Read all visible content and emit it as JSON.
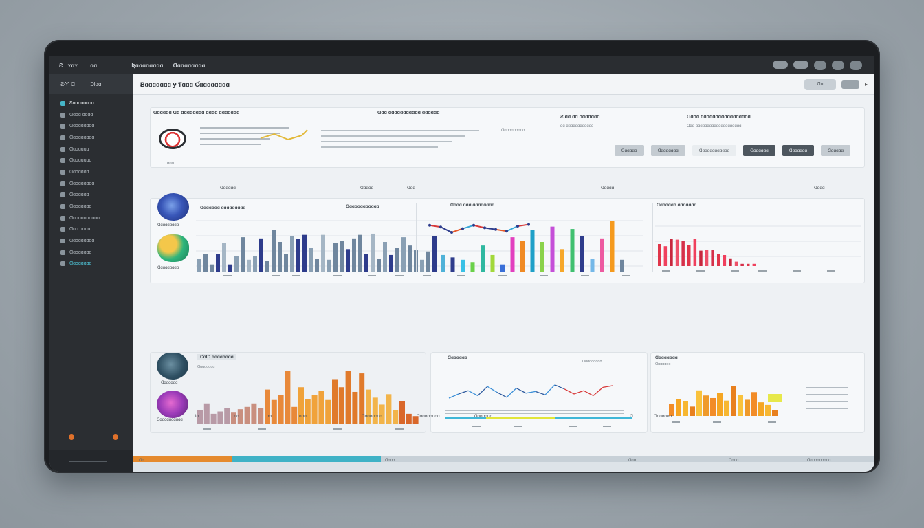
{
  "topbar": {
    "brand": "Ƨ ¯ʏɑʏ",
    "tab_a": "ɑɑ",
    "tab_b": "Ʀɑɑɑɑɑɑɑɑ",
    "tab_c": "Ɑɑɑɑɑɑɑɑɑ"
  },
  "sidebar": {
    "head_left": "Ƨ∕Ƴ Ɑ",
    "head_right": "ƆƖɑɑ",
    "items": [
      {
        "label": "Ƨɑɑɑɑɑɑɑɑ",
        "active": true
      },
      {
        "label": "Ɑɑɑɑ ɑɑɑɑ"
      },
      {
        "label": "Ɑɑɑɑɑɑɑɑɑ"
      },
      {
        "label": "Ɑɑɑɑɑɑɑɑɑ"
      },
      {
        "label": "Ɑɑɑɑɑɑɑ"
      },
      {
        "label": "Ɑɑɑɑɑɑɑɑ"
      },
      {
        "label": "Ɑɑɑɑɑɑɑ"
      },
      {
        "label": "Ɑɑɑɑɑɑɑɑɑ"
      },
      {
        "label": "Ɑɑɑɑɑɑɑ"
      },
      {
        "label": "Ɑɑɑɑɑɑɑɑ"
      },
      {
        "label": "Ɑɑɑɑɑɑɑɑɑɑɑ"
      },
      {
        "label": "Ɑɑɑ ɑɑɑɑ"
      },
      {
        "label": "Ɑɑɑɑɑɑɑɑɑ"
      },
      {
        "label": "Ɑɑɑɑɑɑɑɑ"
      },
      {
        "label": "Ɑɑɑɑɑɑɑɑ",
        "teal": true
      }
    ]
  },
  "main": {
    "title": "Ƀɑɑɑɑɑɑɑ ɏ Ƭɑɑɑ Ƈɑɑɑɑɑɑɑɑ",
    "search_label": "Ɑɑ"
  },
  "row1": {
    "head_1": "Ɑɑɑɑɑɑ Ɑɑ ɑɑɑɑɑɑɑɑ ɑɑɑɑ ɑɑɑɑɑɑɑ",
    "head_2": "Ɑɑɑ ɑɑɑɑɑɑɑɑɑɑɑ ɑɑɑɑɑɑ",
    "head_3": "Ƨ ɑɑ ɑɑ ɑɑɑɑɑɑɑ",
    "head_4": "Ɑɑɑɑ ɑɑɑɑɑɑɑɑɑɑɑɑɑɑɑɑɑ",
    "sub_gauge": "ɑɑɑ",
    "sub_mid": "Ɑɑɑɑɑɑɑɑɑɑ",
    "sub_right": "ɑɑ ɑɑɑɑɑɑɑɑɑɑɑɑ",
    "sub_far": "Ɑɑɑ ɑɑɑɑɑɑɑɑɑɑɑɑɑɑɑɑɑɑɑɑ",
    "buttons": [
      "Ɑɑɑɑɑɑ",
      "Ɑɑɑɑɑɑɑɑ",
      "Ɑɑɑɑɑɑɑɑɑɑɑɑ",
      "Ɑɑɑɑɑɑɑ",
      "Ɑɑɑɑɑɑɑ",
      "Ɑɑɑɑɑɑ"
    ]
  },
  "row2": {
    "labels": [
      "Ɑɑɑɑɑɑ",
      "Ɑɑɑɑɑ",
      "Ɑɑɑ",
      "Ɑɑɑɑɑ",
      "Ɑɑɑɑ"
    ],
    "panel_a_title": "Ɑɑɑɑɑɑɑ ɑɑɑɑɑɑɑɑɑ",
    "panel_b_title": "Ɑɑɑɑɑɑɑɑɑɑɑɑ",
    "panel_c_title": "Ɑɑɑɑ ɑɑɑ ɑɑɑɑɑɑɑɑ",
    "panel_d_title": "Ɑɑɑɑɑɑɑ ɑɑɑɑɑɑɑ",
    "thumb1": "Ɑɑɑɑɑɑɑɑɑ",
    "thumb2": "Ɑɑɑɑɑɑɑɑɑ"
  },
  "row3": {
    "thumb3": "Ɑɑɑɑɑɑɑ",
    "thumb4": "Ɑɑɑɑɑɑɑɑɑɑɑ",
    "panel_a_title": "ƇɑƖƆ ɑɑɑɑɑɑɑɑ",
    "panel_a_sub": "Ɑɑɑɑɑɑɑɑ",
    "panel_b_title": "Ɑɑɑɑɑɑɑ",
    "panel_b_sub": "Ɑɑɑɑɑɑɑɑɑ",
    "panel_c_title": "Ɑɑɑɑɑɑɑɑ",
    "panel_c_sub": "Ɑɑɑɑɑɑɑ"
  },
  "footer": {
    "items": [
      "ƖɑƖ",
      "ɑɑ",
      "ɑɑ",
      "ɑɑɑ",
      "Ɑɑɑɑɑɑɑɑ",
      "Ɑɑɑɑɑɑɑɑɑ",
      "Ɑɑɑɑɑɑɑ",
      "Ɑ",
      "Ɑɑɑɑɑɑɑ"
    ]
  },
  "strip": {
    "label_a": "Ɑɑ",
    "label_b": "Ɑɑɑɑ",
    "label_c": "Ɑɑɑ",
    "label_d": "Ɑɑɑɑ",
    "label_e": "Ɑɑɑɑɑɑɑɑɑɑ"
  },
  "colors": {
    "accent_teal": "#46b6c9",
    "accent_orange": "#e0712b",
    "bar_slate": "#6f869e",
    "bar_navy": "#2e3c8c"
  },
  "chart_data": [
    {
      "type": "bar",
      "values": [
        22,
        30,
        12,
        30,
        48,
        12,
        26,
        58,
        20,
        26,
        56,
        18,
        70,
        50,
        30,
        60,
        55,
        62,
        40,
        22,
        62,
        20,
        48,
        52,
        38,
        56,
        62,
        30,
        64,
        22,
        50,
        28,
        40,
        58,
        44,
        36,
        20,
        34,
        60
      ],
      "ylim": [
        0,
        100
      ]
    },
    {
      "type": "bar",
      "values": [
        28,
        24,
        20,
        16,
        44,
        28,
        12,
        58,
        52,
        70,
        50,
        76,
        38,
        72,
        60,
        22,
        56,
        86,
        20
      ],
      "ylim": [
        0,
        100
      ]
    },
    {
      "type": "line",
      "values": [
        72,
        68,
        55,
        64,
        72,
        66,
        62,
        58,
        70,
        74
      ],
      "ylim": [
        0,
        100
      ]
    },
    {
      "type": "bar",
      "values": [
        40,
        36,
        50,
        48,
        46,
        38,
        50,
        28,
        30,
        30,
        22,
        20,
        14,
        8,
        4,
        4,
        4
      ],
      "ylim": [
        0,
        100
      ]
    },
    {
      "type": "bar",
      "values": [
        24,
        36,
        18,
        22,
        28,
        20,
        26,
        30,
        36,
        28,
        60,
        42,
        50,
        92,
        30,
        64,
        44,
        50,
        58,
        42,
        78,
        64,
        92,
        56,
        88,
        60,
        46,
        34,
        52,
        24,
        40,
        18,
        14
      ],
      "ylim": [
        0,
        100
      ]
    },
    {
      "type": "line",
      "values": [
        30,
        40,
        48,
        36,
        58,
        44,
        32,
        54,
        42,
        46,
        38,
        62,
        52,
        40,
        48,
        36,
        56,
        60
      ],
      "ylim": [
        0,
        100
      ]
    },
    {
      "type": "bar",
      "values": [
        28,
        40,
        34,
        22,
        60,
        48,
        42,
        54,
        36,
        70,
        50,
        38,
        56,
        32,
        26,
        14
      ],
      "ylim": [
        0,
        100
      ]
    }
  ]
}
